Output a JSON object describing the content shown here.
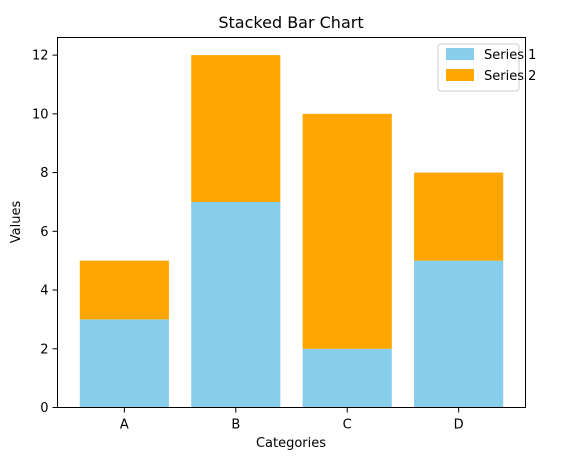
{
  "chart_data": {
    "type": "bar",
    "stacked": true,
    "title": "Stacked Bar Chart",
    "xlabel": "Categories",
    "ylabel": "Values",
    "categories": [
      "A",
      "B",
      "C",
      "D"
    ],
    "series": [
      {
        "name": "Series 1",
        "values": [
          3,
          7,
          2,
          5
        ],
        "color": "#87CEEB"
      },
      {
        "name": "Series 2",
        "values": [
          2,
          5,
          8,
          3
        ],
        "color": "#FFA500"
      }
    ],
    "ylim": [
      0,
      12.6
    ],
    "yticks": [
      0,
      2,
      4,
      6,
      8,
      10,
      12
    ],
    "grid": false,
    "legend_position": "top-right"
  }
}
